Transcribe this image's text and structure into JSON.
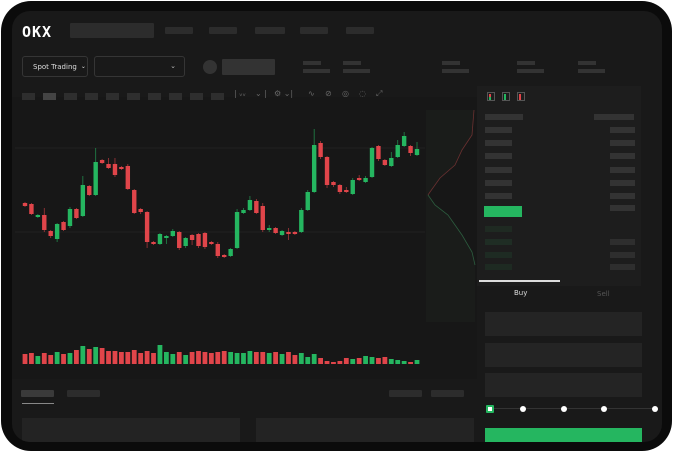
{
  "header": {
    "logo": "OKX"
  },
  "toolbar": {
    "market_select": "Spot Trading",
    "pair_select": "",
    "chevron": "chevron-down-icon"
  },
  "orderbook": {
    "view_icons": [
      "orderbook-both-icon",
      "orderbook-buy-icon",
      "orderbook-sell-icon"
    ]
  },
  "trade": {
    "tabs": [
      {
        "label": "Buy",
        "active": true
      },
      {
        "label": "Sell",
        "active": false
      }
    ],
    "slider_percent": 0,
    "submit_color": "#25b660"
  },
  "colors": {
    "up": "#25b660",
    "down": "#e0454a",
    "background": "#191919"
  },
  "chart_data": {
    "type": "candlestick",
    "series": [
      {
        "ohlc": [
          [
            97,
            94,
            98,
            93
          ],
          [
            96,
            86,
            97,
            85
          ],
          [
            83,
            85,
            86,
            82
          ],
          [
            85,
            70,
            92,
            68
          ],
          [
            69,
            64,
            70,
            62
          ],
          [
            61,
            76,
            77,
            58
          ],
          [
            78,
            70,
            79,
            69
          ],
          [
            74,
            91,
            93,
            72
          ],
          [
            91,
            82,
            92,
            81
          ],
          [
            84,
            115,
            124,
            83
          ],
          [
            114,
            105,
            115,
            104
          ],
          [
            105,
            138,
            152,
            104
          ],
          [
            140,
            137,
            141,
            136
          ],
          [
            136,
            132,
            142,
            131
          ],
          [
            136,
            125,
            142,
            123
          ],
          [
            133,
            131,
            134,
            130
          ],
          [
            134,
            111,
            136,
            110
          ],
          [
            110,
            87,
            111,
            86
          ],
          [
            91,
            88,
            92,
            86
          ],
          [
            88,
            58,
            89,
            52
          ],
          [
            58,
            56,
            59,
            55
          ],
          [
            56,
            66,
            67,
            55
          ],
          [
            62,
            64,
            65,
            56
          ],
          [
            64,
            69,
            71,
            63
          ],
          [
            68,
            52,
            69,
            50
          ],
          [
            54,
            62,
            63,
            52
          ],
          [
            65,
            60,
            66,
            55
          ],
          [
            66,
            54,
            67,
            52
          ],
          [
            67,
            53,
            68,
            51
          ],
          [
            58,
            56,
            59,
            55
          ],
          [
            56,
            44,
            58,
            42
          ],
          [
            45,
            43,
            46,
            42
          ],
          [
            44,
            51,
            52,
            43
          ],
          [
            52,
            88,
            91,
            51
          ],
          [
            87,
            90,
            92,
            86
          ],
          [
            90,
            100,
            104,
            89
          ],
          [
            99,
            87,
            101,
            86
          ],
          [
            94,
            70,
            97,
            68
          ],
          [
            70,
            72,
            75,
            68
          ],
          [
            72,
            67,
            73,
            66
          ],
          [
            65,
            69,
            70,
            64
          ],
          [
            68,
            67,
            72,
            60
          ],
          [
            68,
            66,
            69,
            65
          ],
          [
            68,
            90,
            92,
            67
          ],
          [
            90,
            108,
            110,
            89
          ],
          [
            108,
            155,
            171,
            107
          ],
          [
            157,
            143,
            159,
            141
          ],
          [
            143,
            115,
            144,
            112
          ],
          [
            118,
            115,
            119,
            113
          ],
          [
            115,
            108,
            116,
            106
          ],
          [
            110,
            108,
            113,
            107
          ],
          [
            106,
            120,
            122,
            105
          ],
          [
            122,
            120,
            125,
            119
          ],
          [
            118,
            122,
            124,
            117
          ],
          [
            123,
            152,
            153,
            122
          ],
          [
            154,
            141,
            155,
            139
          ],
          [
            140,
            135,
            141,
            134
          ],
          [
            134,
            142,
            148,
            133
          ],
          [
            143,
            155,
            160,
            142
          ],
          [
            154,
            164,
            168,
            153
          ],
          [
            154,
            147,
            155,
            144
          ],
          [
            145,
            151,
            158,
            144
          ]
        ],
        "volume": [
          10,
          11,
          8,
          11,
          9,
          12,
          10,
          11,
          14,
          18,
          15,
          17,
          16,
          13,
          13,
          12,
          12,
          14,
          11,
          13,
          11,
          19,
          12,
          10,
          12,
          9,
          12,
          13,
          12,
          11,
          12,
          13,
          12,
          11,
          11,
          13,
          12,
          12,
          11,
          12,
          10,
          12,
          9,
          11,
          7,
          10,
          6,
          3,
          2,
          3,
          6,
          5,
          6,
          8,
          7,
          6,
          7,
          5,
          4,
          3,
          2,
          4
        ]
      }
    ],
    "ylim": [
      30,
      180
    ],
    "grid": true
  }
}
